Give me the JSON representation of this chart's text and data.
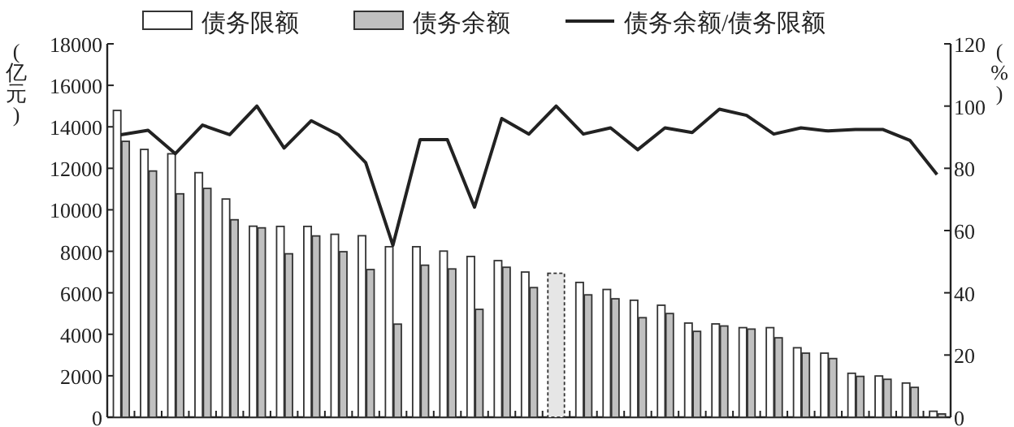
{
  "chart_data": {
    "type": "bar",
    "ylabel": "(亿元)",
    "y2label": "(%)",
    "categories": [
      null,
      null,
      null,
      null,
      null,
      null,
      null,
      null,
      null,
      null,
      null,
      null,
      null,
      null,
      null,
      null,
      null,
      null,
      null,
      null,
      null,
      null,
      null,
      null,
      null,
      null,
      null,
      null,
      null,
      null,
      null
    ],
    "series": [
      {
        "name": "债务限额",
        "color": "#ffffff",
        "values": [
          14790,
          12910,
          12700,
          11790,
          10520,
          9210,
          9200,
          9200,
          8820,
          8750,
          8220,
          8220,
          8010,
          7750,
          7550,
          7000,
          null,
          6500,
          6160,
          5640,
          5400,
          4540,
          4500,
          4320,
          4320,
          3350,
          3090,
          2120,
          1990,
          1650,
          290
        ]
      },
      {
        "name": "债务余额",
        "color": "#c0c0c0",
        "values": [
          13300,
          11870,
          10770,
          11030,
          9520,
          9130,
          7880,
          8740,
          7980,
          7120,
          4490,
          7330,
          7150,
          5200,
          7230,
          6250,
          null,
          5900,
          5710,
          4800,
          5000,
          4140,
          4400,
          4250,
          3830,
          3090,
          2830,
          1970,
          1830,
          1440,
          160
        ]
      },
      {
        "color": "#e6e6e6",
        "line_style": "dashed",
        "values": [
          null,
          null,
          null,
          null,
          null,
          null,
          null,
          null,
          null,
          null,
          null,
          null,
          null,
          null,
          null,
          null,
          6940,
          null,
          null,
          null,
          null,
          null,
          null,
          null,
          null,
          null,
          null,
          null,
          null,
          null,
          null
        ]
      },
      {
        "name": "债务余额/债务限额",
        "type": "line",
        "axis": "y2",
        "color": "#222222",
        "values": [
          90.8,
          92.2,
          84.7,
          93.9,
          90.8,
          100,
          86.5,
          95.3,
          90.8,
          81.8,
          55.3,
          89.2,
          89.2,
          67.5,
          96,
          91,
          100,
          91,
          93,
          86,
          93,
          91.5,
          99,
          97,
          91,
          93,
          92,
          92.5,
          92.5,
          89,
          78
        ]
      }
    ],
    "ylim": [
      0,
      18000
    ],
    "yticks": [
      0,
      2000,
      4000,
      6000,
      8000,
      10000,
      12000,
      14000,
      16000,
      18000
    ],
    "y2lim": [
      0,
      120
    ],
    "y2ticks": [
      0,
      20,
      40,
      60,
      80,
      100,
      120
    ],
    "legend": "top",
    "grid": false,
    "marker": "none"
  }
}
